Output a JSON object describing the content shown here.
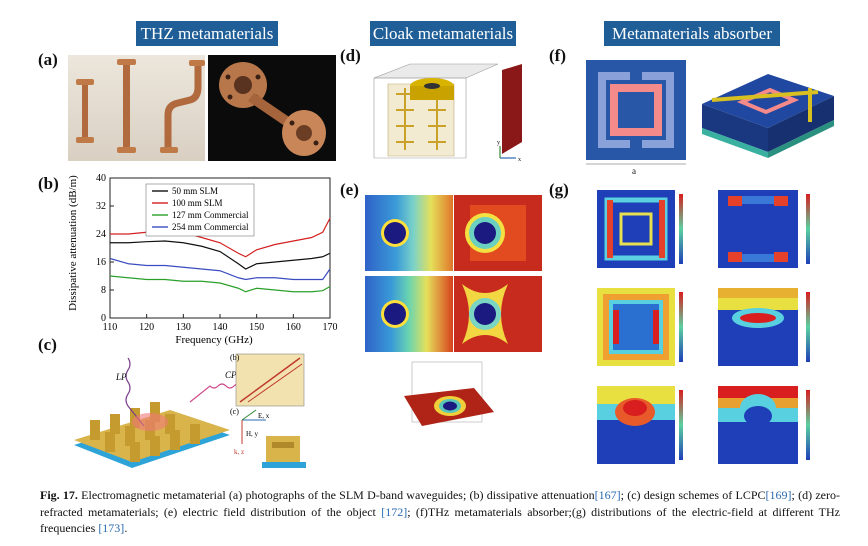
{
  "headers": {
    "thz": "THZ metamaterials",
    "cloak": "Cloak metamaterials",
    "absorber": "Metamaterials absorber"
  },
  "panel_labels": [
    "(a)",
    "(b)",
    "(c)",
    "(d)",
    "(e)",
    "(f)",
    "(g)"
  ],
  "inset_labels": {
    "lp": "LP",
    "cp": "CP",
    "b": "(b)",
    "c": "(c)",
    "k": "k, z",
    "e": "E, x",
    "h": "H, y",
    "f_a": "a",
    "d_x": "x",
    "d_y": "y"
  },
  "chart_data": {
    "type": "line",
    "xlabel": "Frequency (GHz)",
    "ylabel": "Dissipative attenuation (dB/m)",
    "xlim": [
      110,
      170
    ],
    "ylim": [
      0,
      40
    ],
    "xticks": [
      110,
      120,
      130,
      140,
      150,
      160,
      170
    ],
    "yticks": [
      0,
      8,
      16,
      24,
      32,
      40
    ],
    "x": [
      110,
      115,
      120,
      125,
      130,
      135,
      140,
      145,
      147,
      150,
      155,
      160,
      165,
      168,
      170
    ],
    "series": [
      {
        "name": "50 mm SLM",
        "color": "#111111",
        "values": [
          21.5,
          21.5,
          21.8,
          22.0,
          21.5,
          20.5,
          19.0,
          15.5,
          14.0,
          15.5,
          16.0,
          16.5,
          17.0,
          17.5,
          18.5
        ]
      },
      {
        "name": "100 mm SLM",
        "color": "#d32020",
        "values": [
          24.0,
          24.0,
          24.5,
          25.0,
          24.5,
          23.0,
          21.5,
          18.5,
          17.5,
          19.5,
          21.0,
          22.0,
          23.0,
          24.5,
          28.5
        ]
      },
      {
        "name": "127 mm Commercial",
        "color": "#2aa02a",
        "values": [
          12.0,
          11.5,
          11.0,
          11.0,
          10.5,
          10.5,
          10.0,
          8.5,
          7.5,
          8.5,
          8.0,
          7.5,
          7.5,
          7.8,
          9.0
        ]
      },
      {
        "name": "254 mm Commercial",
        "color": "#3b4cc0",
        "values": [
          17.0,
          15.5,
          15.0,
          15.0,
          14.5,
          14.0,
          13.5,
          11.5,
          11.0,
          11.5,
          11.5,
          11.0,
          11.0,
          11.0,
          14.0
        ]
      }
    ],
    "legend": "top"
  },
  "caption": {
    "fig": "Fig. 17.",
    "part1": " Electromagnetic metamaterial (a) photographs of the SLM D-band waveguides; (b) dissipative attenuation",
    "ref1": "[167]",
    "part2": "; (c) design schemes of LCPC",
    "ref2": "[169]",
    "part3": "; (d) zero-refracted metamaterials; (e) electric field distribution of the object ",
    "ref3": "[172]",
    "part4": "; (f)THz metamaterials absorber;(g) distributions of the electric-field at different THz frequencies ",
    "ref4": "[173]",
    "part5": "."
  }
}
